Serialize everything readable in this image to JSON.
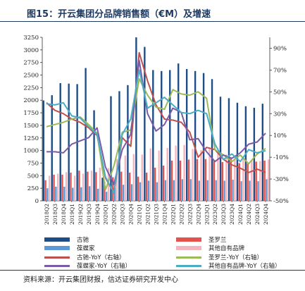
{
  "title": "图15：开云集团分品牌销售额（€M）及增速",
  "source": "资料来源：开云集团财报，信达证券研究开发中心",
  "colors": {
    "gucci": "#1f4e87",
    "ysl": "#e4524b",
    "bv": "#5b9bd5",
    "other": "#f4b6be",
    "gucci_yoy": "#c0504d",
    "ysl_yoy": "#9bbb59",
    "bv_yoy": "#7b5aa6",
    "other_yoy": "#4bacc6",
    "title": "#1f3a60"
  },
  "chart_data": {
    "type": "bar",
    "title": "开云集团分品牌销售额（€M）及增速",
    "categories": [
      "2018Q2",
      "2018Q3",
      "2018Q4",
      "2019Q1",
      "2019Q2",
      "2019Q3",
      "2019Q4",
      "2020Q1",
      "2020Q2",
      "2020Q3",
      "2020Q4",
      "2021Q1",
      "2021Q2",
      "2021Q3",
      "2021Q4",
      "2022Q1",
      "2022Q2",
      "2022Q3",
      "2022Q4",
      "2023Q1",
      "2023Q2",
      "2023Q3",
      "2023Q4",
      "2024Q1",
      "2024Q2",
      "2024Q3",
      "2024Q4"
    ],
    "left_axis": {
      "min": 0,
      "max": 3250,
      "ticks": [
        0,
        250,
        500,
        750,
        1000,
        1250,
        1500,
        1750,
        2000,
        2250,
        2500,
        2750,
        3000,
        3250
      ]
    },
    "right_axis": {
      "min": -50,
      "max": 100,
      "ticks": [
        -50,
        -30,
        -10,
        10,
        30,
        50,
        70,
        90
      ],
      "tick_labels": [
        "-50%",
        "-30%",
        "-10%",
        "10%",
        "30%",
        "50%",
        "70%",
        "90%"
      ],
      "label": "右轴"
    },
    "series": [
      {
        "name": "古驰",
        "kind": "bar",
        "axis": "left",
        "values": [
          1995,
          2100,
          2340,
          2330,
          2320,
          2640,
          1800,
          460,
          2080,
          2180,
          2300,
          3250,
          3060,
          2600,
          2580,
          2600,
          2730,
          2620,
          2580,
          2540,
          2420,
          2070,
          2040,
          1950,
          1880,
          1850,
          1930
        ]
      },
      {
        "name": "圣罗兰",
        "kind": "bar",
        "axis": "left",
        "values": [
          410,
          520,
          520,
          560,
          600,
          580,
          570,
          380,
          470,
          580,
          560,
          480,
          560,
          660,
          700,
          800,
          800,
          820,
          830,
          830,
          790,
          770,
          850,
          750,
          740,
          780,
          800
        ]
      },
      {
        "name": "葆蝶家",
        "kind": "bar",
        "axis": "left",
        "values": [
          250,
          280,
          280,
          260,
          270,
          290,
          240,
          180,
          260,
          320,
          330,
          370,
          400,
          370,
          410,
          410,
          430,
          430,
          400,
          410,
          410,
          400,
          420,
          390,
          400,
          390,
          430
        ]
      },
      {
        "name": "其他自有品牌",
        "kind": "bar",
        "axis": "left",
        "values": [
          500,
          540,
          570,
          500,
          540,
          600,
          660,
          650,
          830,
          900,
          930,
          920,
          1040,
          1000,
          1050,
          1100,
          1110,
          1030,
          1010,
          1050,
          960,
          920,
          860,
          840,
          810,
          790,
          820
        ]
      },
      {
        "name": "古驰-YoY（右轴）",
        "kind": "line",
        "axis": "right",
        "values": [
          40,
          33,
          30,
          25,
          22,
          17,
          10,
          -29,
          -43,
          8,
          0,
          86,
          60,
          38,
          25,
          24,
          22,
          13,
          -10,
          -1,
          -3,
          -12,
          -17,
          -20,
          -24,
          -21,
          -24
        ]
      },
      {
        "name": "圣罗兰-YoY（右轴）",
        "kind": "line",
        "axis": "right",
        "values": [
          18,
          20,
          22,
          25,
          27,
          20,
          12,
          -40,
          -18,
          13,
          15,
          62,
          47,
          36,
          34,
          52,
          48,
          47,
          50,
          44,
          -3,
          -8,
          -14,
          -8,
          -16,
          -7,
          -2
        ]
      },
      {
        "name": "葆蝶家-YoY（右轴）",
        "kind": "line",
        "axis": "right",
        "values": [
          -5,
          -5,
          -6,
          2,
          5,
          8,
          17,
          -19,
          -35,
          -3,
          11,
          79,
          30,
          14,
          20,
          35,
          31,
          6,
          7,
          -5,
          -14,
          -8,
          -11,
          -6,
          2,
          4,
          12
        ]
      },
      {
        "name": "其他自有品牌-YoY（右轴）",
        "kind": "line",
        "axis": "right",
        "values": [
          39,
          38,
          40,
          28,
          26,
          18,
          11,
          -28,
          -43,
          11,
          25,
          70,
          35,
          40,
          45,
          38,
          31,
          30,
          33,
          30,
          2,
          -12,
          -7,
          -14,
          -3,
          -6,
          -4
        ]
      }
    ]
  },
  "legend": [
    {
      "label": "古驰",
      "color": "#1f4e87",
      "kind": "bar"
    },
    {
      "label": "圣罗兰",
      "color": "#e4524b",
      "kind": "bar"
    },
    {
      "label": "葆蝶家",
      "color": "#5b9bd5",
      "kind": "bar"
    },
    {
      "label": "其他自有品牌",
      "color": "#f4b6be",
      "kind": "bar"
    },
    {
      "label": "古驰-YoY（右轴）",
      "color": "#c0504d",
      "kind": "line"
    },
    {
      "label": "圣罗兰-YoY（右轴）",
      "color": "#9bbb59",
      "kind": "line"
    },
    {
      "label": "葆蝶家-YoY（右轴）",
      "color": "#7b5aa6",
      "kind": "line"
    },
    {
      "label": "其他自有品牌-YoY（右轴）",
      "color": "#4bacc6",
      "kind": "line"
    }
  ]
}
